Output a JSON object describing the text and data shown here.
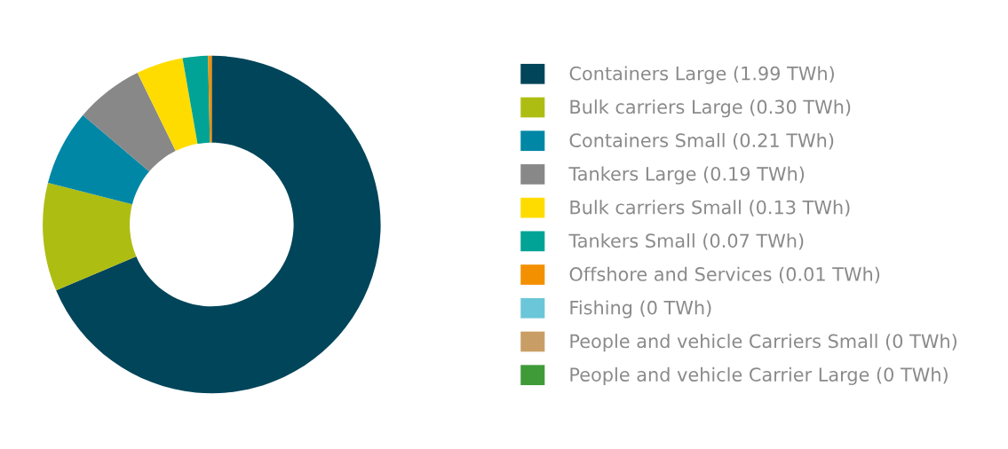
{
  "chart_data": {
    "type": "donut",
    "categories": [
      "Containers Large (1.99 TWh)",
      "Bulk carriers Large (0.30 TWh)",
      "Containers Small (0.21 TWh)",
      "Tankers Large (0.19 TWh)",
      "Bulk carriers Small (0.13 TWh)",
      "Tankers Small (0.07 TWh)",
      "Offshore and Services (0.01 TWh)",
      "Fishing (0 TWh)",
      "People and vehicle Carriers Small (0 TWh)",
      "People and vehicle Carrier Large (0 TWh)"
    ],
    "values": [
      1.99,
      0.3,
      0.21,
      0.19,
      0.13,
      0.07,
      0.01,
      0,
      0,
      0
    ],
    "colors": [
      "#00455a",
      "#aebd12",
      "#0087a6",
      "#888888",
      "#ffdc00",
      "#00a396",
      "#f39000",
      "#6cc6d9",
      "#c99e66",
      "#3f9a38"
    ],
    "legend": "right"
  }
}
